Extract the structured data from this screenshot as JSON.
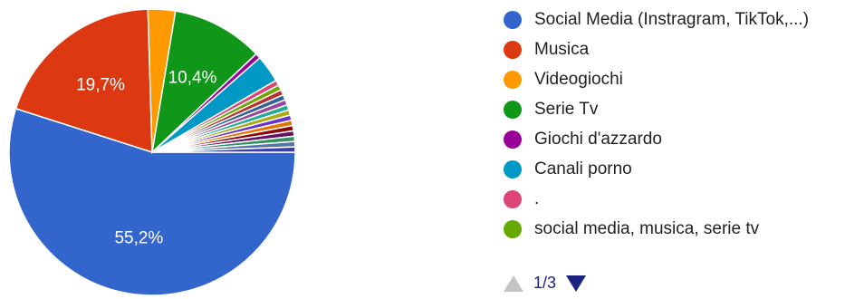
{
  "chart_data": {
    "type": "pie",
    "slices": [
      {
        "label": "Social Media (Instragram, TikTok,...)",
        "value": 55.2,
        "display": "55,2%",
        "color": "#3366cc"
      },
      {
        "label": "Musica",
        "value": 19.7,
        "display": "19,7%",
        "color": "#dc3912"
      },
      {
        "label": "Videogiochi",
        "value": 3.1,
        "display": "",
        "color": "#ff9900"
      },
      {
        "label": "Serie Tv",
        "value": 10.4,
        "display": "10,4%",
        "color": "#109618"
      },
      {
        "label": "Giochi d'azzardo",
        "value": 0.6,
        "display": "",
        "color": "#990099"
      },
      {
        "label": "Canali porno",
        "value": 3.1,
        "display": "",
        "color": "#0099c6"
      },
      {
        "label": ".",
        "value": 0.6,
        "display": "",
        "color": "#dd4477"
      },
      {
        "label": "social media, musica, serie tv",
        "value": 0.6,
        "display": "",
        "color": "#66aa00"
      },
      {
        "label": "",
        "value": 0.6,
        "display": "",
        "color": "#b82e2e"
      },
      {
        "label": "",
        "value": 0.6,
        "display": "",
        "color": "#316395"
      },
      {
        "label": "",
        "value": 0.6,
        "display": "",
        "color": "#994499"
      },
      {
        "label": "",
        "value": 0.6,
        "display": "",
        "color": "#22aa99"
      },
      {
        "label": "",
        "value": 0.6,
        "display": "",
        "color": "#aaaa11"
      },
      {
        "label": "",
        "value": 0.6,
        "display": "",
        "color": "#6633cc"
      },
      {
        "label": "",
        "value": 0.6,
        "display": "",
        "color": "#e67300"
      },
      {
        "label": "",
        "value": 0.6,
        "display": "",
        "color": "#8b0707"
      },
      {
        "label": "",
        "value": 0.6,
        "display": "",
        "color": "#651067"
      },
      {
        "label": "",
        "value": 0.6,
        "display": "",
        "color": "#329262"
      },
      {
        "label": "",
        "value": 0.6,
        "display": "",
        "color": "#5574a6"
      },
      {
        "label": "",
        "value": 0.6,
        "display": "",
        "color": "#3b3eac"
      }
    ],
    "legend_visible_count": 8,
    "legend_position": "right"
  },
  "pager": {
    "text": "1/3",
    "up_color": "#c4c4c4",
    "down_color": "#1a237e"
  }
}
